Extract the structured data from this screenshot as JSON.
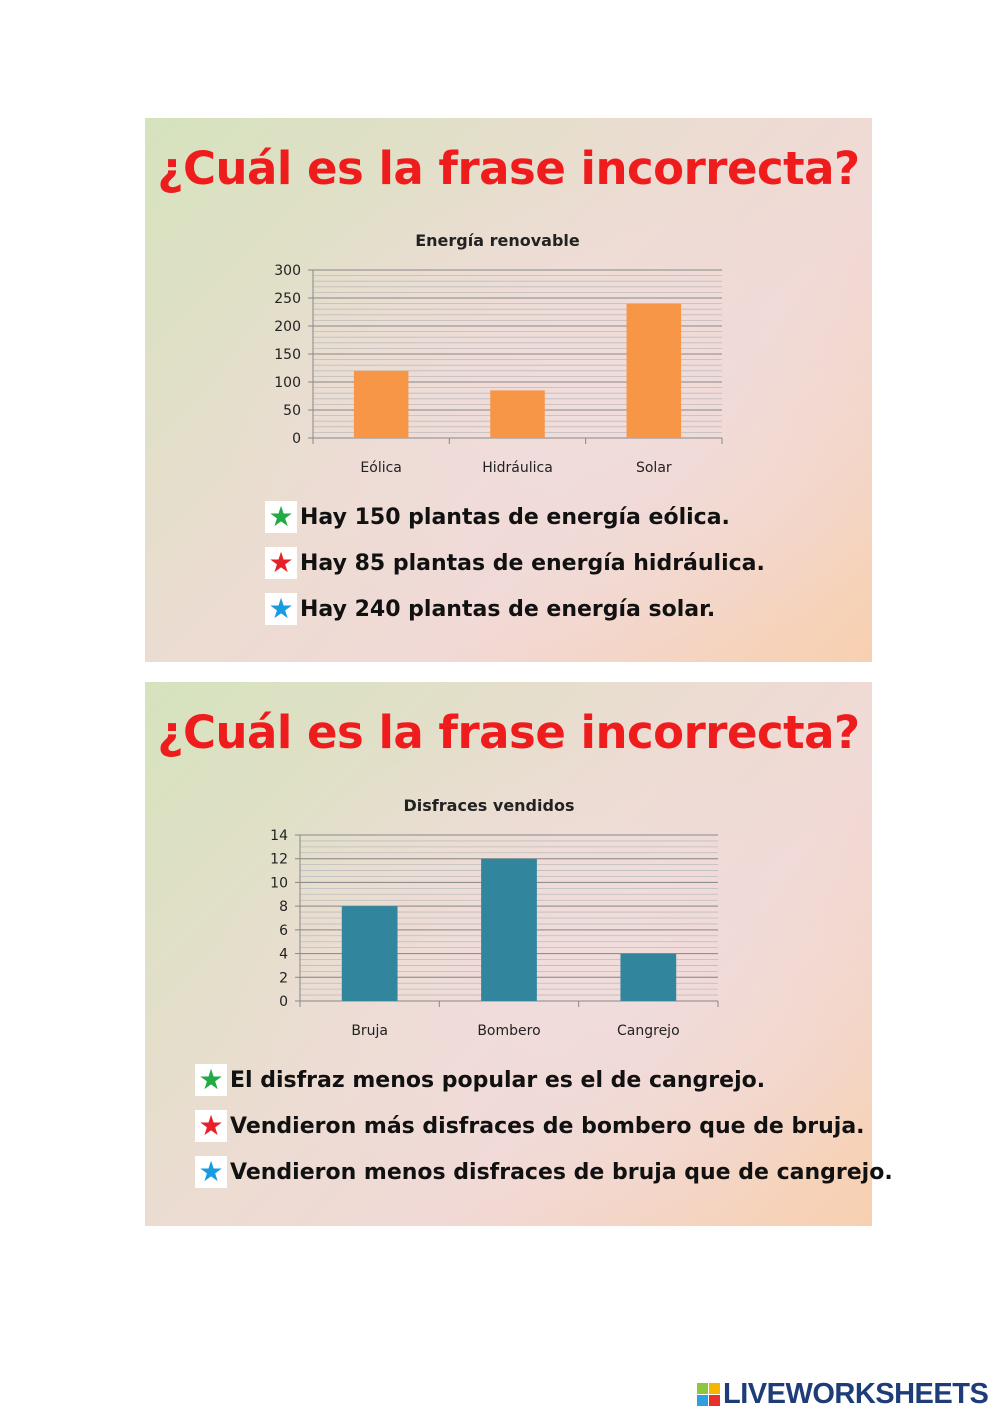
{
  "slides": [
    {
      "title": "¿Cuál es la frase incorrecta?",
      "options": [
        {
          "icon": "star-icon",
          "color": "#22aa44",
          "text": "Hay 150 plantas de energía eólica."
        },
        {
          "icon": "star-icon",
          "color": "#e8202a",
          "text": "Hay 85 plantas de energía hidráulica."
        },
        {
          "icon": "star-icon",
          "color": "#1a9be0",
          "text": "Hay 240 plantas de energía solar."
        }
      ]
    },
    {
      "title": "¿Cuál es la frase incorrecta?",
      "options": [
        {
          "icon": "star-icon",
          "color": "#22aa44",
          "text": "El disfraz menos popular es el de cangrejo."
        },
        {
          "icon": "star-icon",
          "color": "#e8202a",
          "text": "Vendieron más disfraces de bombero que de bruja."
        },
        {
          "icon": "star-icon",
          "color": "#1a9be0",
          "text": "Vendieron menos disfraces de bruja que de cangrejo."
        }
      ]
    }
  ],
  "chart_data": [
    {
      "type": "bar",
      "title": "Energía renovable",
      "categories": [
        "Eólica",
        "Hidráulica",
        "Solar"
      ],
      "values": [
        120,
        85,
        240
      ],
      "ylim": [
        0,
        300
      ],
      "yticks": [
        0,
        50,
        100,
        150,
        200,
        250,
        300
      ],
      "minor_step": 10,
      "grid": true,
      "color": "#f79646",
      "xlabel": "",
      "ylabel": ""
    },
    {
      "type": "bar",
      "title": "Disfraces vendidos",
      "categories": [
        "Bruja",
        "Bombero",
        "Cangrejo"
      ],
      "values": [
        8,
        12,
        4
      ],
      "ylim": [
        0,
        14
      ],
      "yticks": [
        0,
        2,
        4,
        6,
        8,
        10,
        12,
        14
      ],
      "minor_step": 0.5,
      "grid": true,
      "color": "#31859c",
      "xlabel": "",
      "ylabel": ""
    }
  ],
  "logo": {
    "text": "LIVEWORKSHEETS",
    "letters": [
      "L",
      "I",
      "V",
      "E"
    ]
  }
}
